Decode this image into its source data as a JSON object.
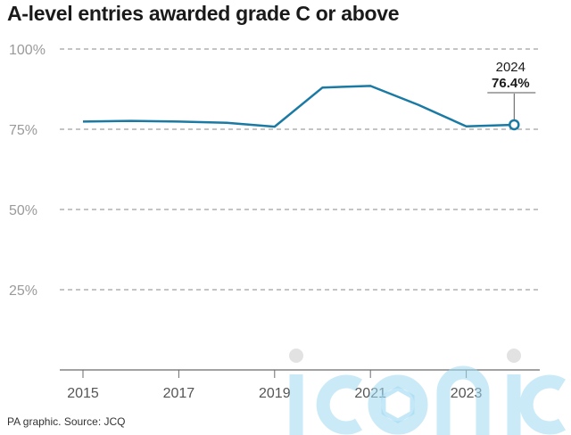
{
  "chart_data": {
    "type": "line",
    "title": "A-level entries awarded grade C or above",
    "x": [
      2015,
      2016,
      2017,
      2018,
      2019,
      2020,
      2021,
      2022,
      2023,
      2024
    ],
    "series": [
      {
        "values": [
          77.4,
          77.6,
          77.4,
          77.0,
          75.8,
          88.0,
          88.5,
          82.6,
          75.9,
          76.4
        ]
      }
    ],
    "x_ticks": [
      "2015",
      "2017",
      "2019",
      "2021",
      "2023"
    ],
    "y_ticks": [
      "100%",
      "75%",
      "50%",
      "25%"
    ],
    "ylim": [
      0,
      100
    ],
    "grid": "dashed horizontal",
    "annotation": {
      "year": "2024",
      "value": "76.4%"
    },
    "colors": {
      "line": "#1a7aa3",
      "grid": "#8a8a8a",
      "axis": "#6b6b6b",
      "tick_text": "#555555"
    }
  },
  "footer": "PA graphic. Source: JCQ",
  "watermark": {
    "text": "iconic",
    "color": "#8fd1f0"
  }
}
